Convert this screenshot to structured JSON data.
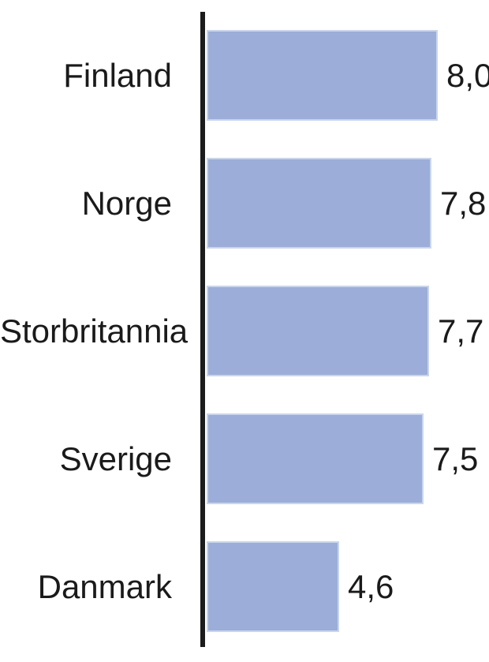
{
  "chart_data": {
    "type": "bar",
    "orientation": "horizontal",
    "title": "",
    "xlabel": "",
    "ylabel": "",
    "categories": [
      "Finland",
      "Norge",
      "Storbritannia",
      "Sverige",
      "Danmark"
    ],
    "values": [
      8.0,
      7.8,
      7.7,
      7.5,
      4.6
    ],
    "value_labels": [
      "8,0",
      "7,8",
      "7,7",
      "7,5",
      "4,6"
    ],
    "xlim": [
      0,
      9.8
    ],
    "grid": false,
    "legend": false,
    "decimal_separator": ",",
    "bar_color": "#9badd8",
    "bar_border_color": "#c9d5eb",
    "axis_color": "#1c1c1c",
    "text_color": "#1a1a1a",
    "background_color": "#ffffff"
  }
}
